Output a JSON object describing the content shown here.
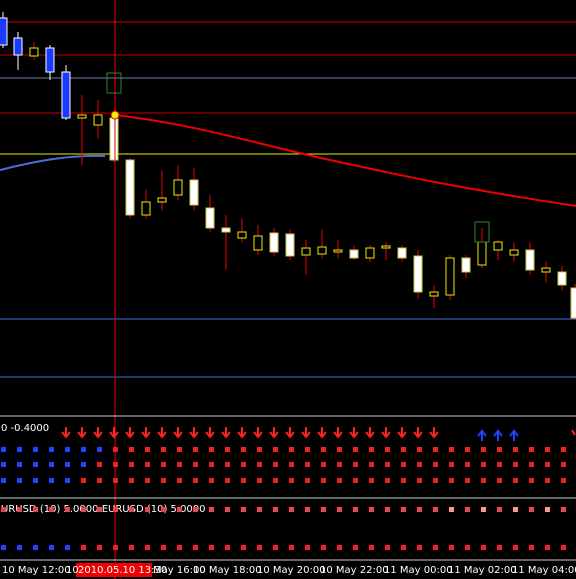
{
  "indicator_1": {
    "label": "0 -0.4000"
  },
  "indicator_2": {
    "label": "URUSD (10) 5.0000  EURUSD (10) 5.0000"
  },
  "time_axis": {
    "labels": [
      "10 May 12:00",
      "10",
      "May 16:00",
      "10 May 18:00",
      "10 May 20:00",
      "10 May 22:00",
      "11 May 00:00",
      "11 May 02:00",
      "11 May 04:00"
    ],
    "crosshair_label": "2010.05.10 13:30"
  }
}
